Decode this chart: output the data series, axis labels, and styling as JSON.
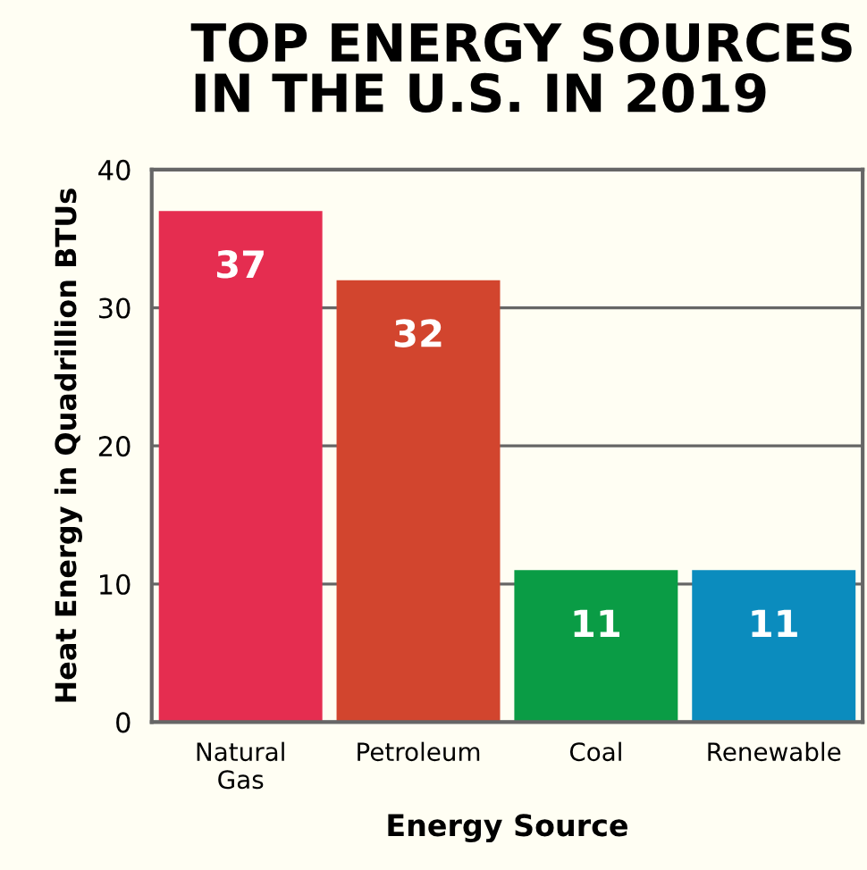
{
  "chart_data": {
    "type": "bar",
    "title": "TOP ENERGY SOURCES\nIN THE U.S. IN 2019",
    "xlabel": "Energy Source",
    "ylabel": "Heat Energy in Quadrillion BTUs",
    "categories": [
      "Natural\nGas",
      "Petroleum",
      "Coal",
      "Renewable"
    ],
    "values": [
      37,
      32,
      11,
      11
    ],
    "colors": [
      "#e52d50",
      "#d2452e",
      "#0a9c45",
      "#0b8cbe"
    ],
    "ylim": [
      0,
      40
    ],
    "yticks": [
      0,
      10,
      20,
      30,
      40
    ],
    "grid": "y",
    "data_labels": true
  }
}
